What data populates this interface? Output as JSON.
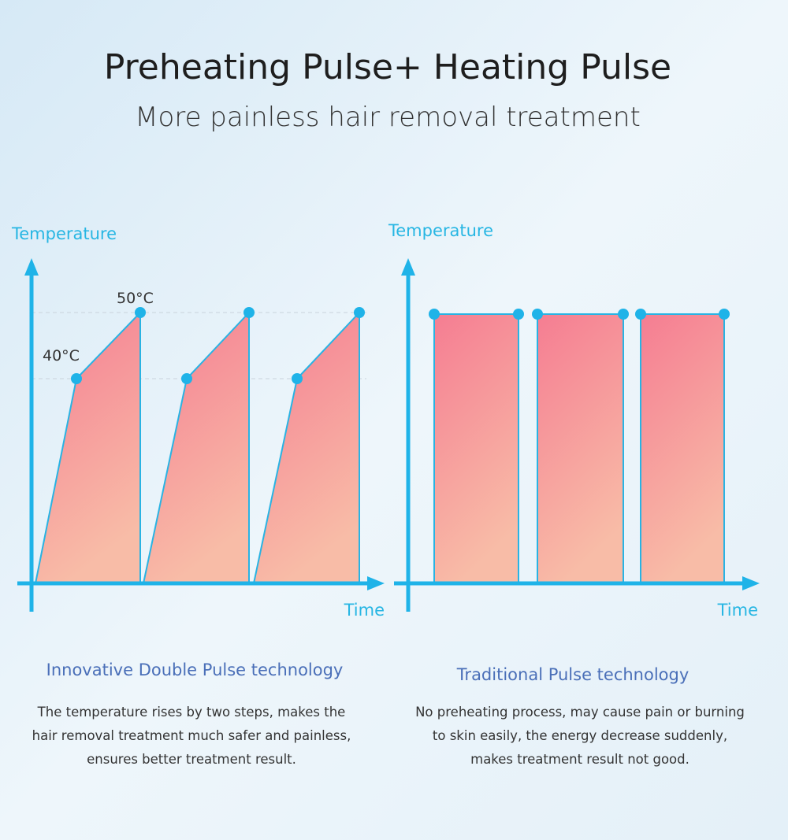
{
  "header": {
    "title": "Preheating Pulse+ Heating Pulse",
    "subtitle": "More painless hair removal treatment"
  },
  "panels": [
    {
      "y_label": "Temperature",
      "x_label": "Time",
      "levels": [
        "50°C",
        "40°C"
      ],
      "heading": "Innovative Double Pulse technology",
      "description": [
        "The temperature rises by two steps, makes the",
        "hair removal treatment much safer and painless,",
        "ensures better treatment result."
      ]
    },
    {
      "y_label": "Temperature",
      "x_label": "Time",
      "heading": "Traditional Pulse technology",
      "description": [
        "No preheating process, may cause pain or burning",
        "to skin easily, the energy decrease suddenly,",
        "makes treatment result not good."
      ]
    }
  ]
}
